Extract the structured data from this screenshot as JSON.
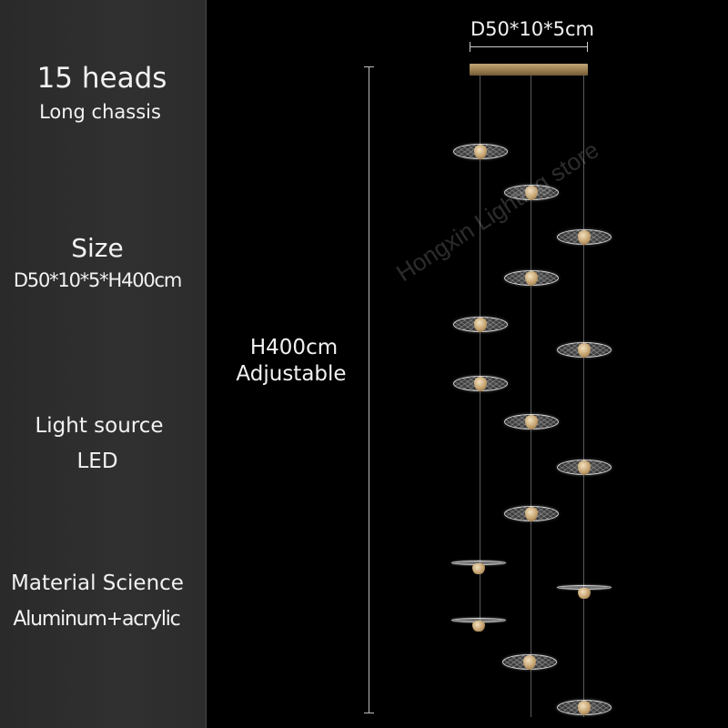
{
  "specs": {
    "heads": "15 heads",
    "chassis": "Long chassis",
    "size_title": "Size",
    "size_value": "D50*10*5*H400cm",
    "light_source_title": "Light source",
    "light_source_value": "LED",
    "material_title": "Material Science",
    "material_value": "Aluminum+acrylic"
  },
  "dimensions": {
    "canopy": "D50*10*5cm",
    "height_value": "H400cm",
    "height_note": "Adjustable"
  },
  "watermark": "Hongxin Lighting store",
  "product": {
    "head_count": 15,
    "colors": {
      "background": "#000000",
      "panel": "#2e2e2e",
      "brass": "#b89c6a"
    }
  }
}
